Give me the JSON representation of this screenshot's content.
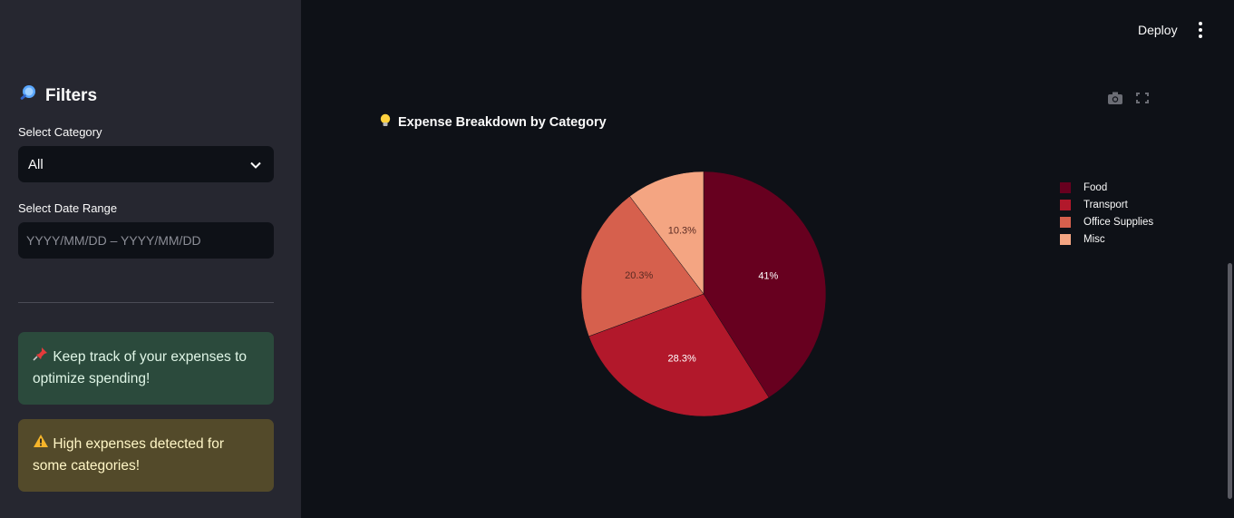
{
  "header": {
    "deploy_label": "Deploy",
    "menu_icon": "kebab-menu-icon"
  },
  "sidebar": {
    "title": "Filters",
    "title_icon": "magnifier-icon",
    "category_label": "Select Category",
    "category_value": "All",
    "date_label": "Select Date Range",
    "date_placeholder": "YYYY/MM/DD – YYYY/MM/DD",
    "info_message": "Keep track of your expenses to optimize spending!",
    "info_icon": "pushpin-icon",
    "warning_message": "High expenses detected for some categories!",
    "warning_icon": "warning-icon"
  },
  "chart": {
    "title": "Expense Breakdown by Category",
    "title_icon": "lightbulb-icon",
    "toolbar": [
      "camera-icon",
      "fullscreen-icon"
    ]
  },
  "chart_data": {
    "type": "pie",
    "categories": [
      "Food",
      "Transport",
      "Office Supplies",
      "Misc"
    ],
    "values": [
      41,
      28.3,
      20.3,
      10.3
    ],
    "labels": [
      "41%",
      "28.3%",
      "20.3%",
      "10.3%"
    ],
    "colors": [
      "#67001f",
      "#b2182b",
      "#d6604d",
      "#f4a582"
    ],
    "label_colors": [
      "#ffffff",
      "#ffffff",
      "#5a2a22",
      "#5a2a22"
    ],
    "legend_position": "top-right"
  }
}
